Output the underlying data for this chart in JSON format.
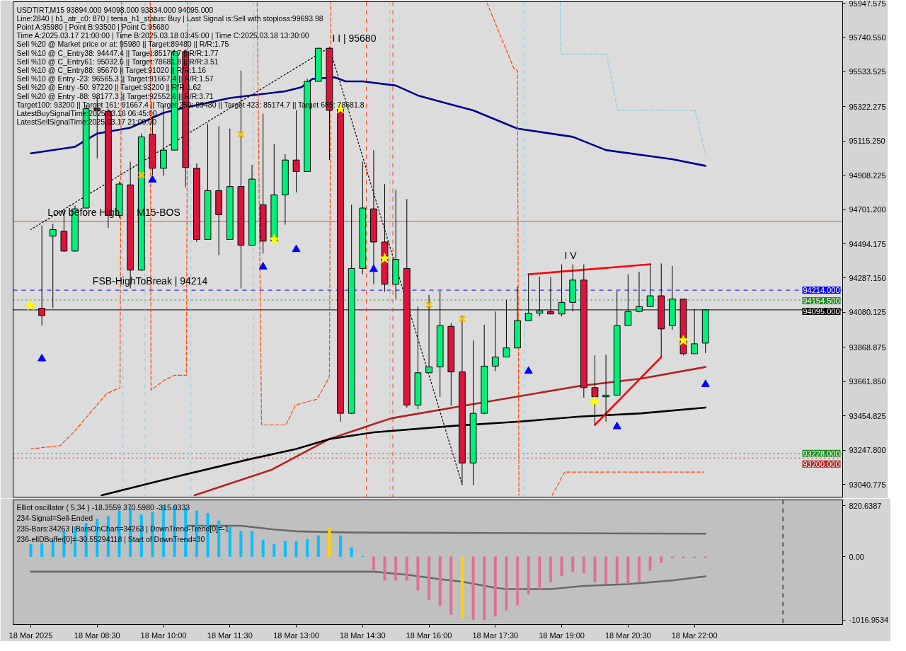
{
  "chart_data": [
    {
      "type": "candlestick",
      "title": "USDTIRT,M15  93894.000 94098.000 93834.000 94095.000",
      "annotations": [
        "Line:2840 | h1_atr_c0: 870 | tema_h1_status: Buy | Last Signal is:Sell with stoploss:99693.98",
        "Point A:95980 | Point B:93500 | Point C:95680",
        "Time A:2025.03.17 21:00:00 | Time B:2025.03.18 03:45:00 | Time C:2025.03.18 13:30:00",
        "Sell %20 @ Market price or at: 95980 || Target:89480 || R/R:1.75",
        "Sell %10 @ C_Entry38: 94447.4 || Target:85174.7 || R/R:1.77",
        "Sell %10 @ C_Entry61: 95032.6 || Target:78681.8 || R/R:3.51",
        "Sell %10 @ C_Entry88: 95670 || Target:91020 || R/R:1.16",
        "Sell %10 @ Entry -23: 96565.3 || Target:91667.4 || R/R:1.57",
        "Sell %20 @ Entry -50: 97220 || Target:93200 || R/R:1.62",
        "Sell %20 @ Entry -88: 98177.3 || Target:92552.6 || R/R:3.71",
        "Target100: 93200 || Target 161: 91667.4 || Target 250: 89480 || Target 423: 85174.7 || Target 685: 78681.8",
        "LatestBuySignalTime:2025.03.16 06:45:00",
        "LatestSellSignalTime:2025.03.17 21:00:00",
        {
          "text": "I I | 95680",
          "x": "2025-03-18T13:45",
          "y": 95680
        },
        {
          "text": "I V",
          "x": "2025-03-18T19:00",
          "y": 94370
        },
        {
          "text": "Low before High",
          "x": "2025-03-18T07:19",
          "y": 94630
        },
        {
          "text": "M15-BOS",
          "x": "2025-03-18T09:20",
          "y": 94630
        },
        {
          "text": "FSB-HighToBreak | 94214",
          "x": "2025-03-18T08:20",
          "y": 94214
        }
      ],
      "x": [
        "2025-03-18T07:15",
        "2025-03-18T07:30",
        "2025-03-18T07:45",
        "2025-03-18T08:00",
        "2025-03-18T08:15",
        "2025-03-18T08:30",
        "2025-03-18T08:45",
        "2025-03-18T09:00",
        "2025-03-18T09:15",
        "2025-03-18T09:30",
        "2025-03-18T09:45",
        "2025-03-18T10:00",
        "2025-03-18T10:15",
        "2025-03-18T10:30",
        "2025-03-18T10:45",
        "2025-03-18T11:00",
        "2025-03-18T11:15",
        "2025-03-18T11:30",
        "2025-03-18T11:45",
        "2025-03-18T12:00",
        "2025-03-18T12:15",
        "2025-03-18T12:30",
        "2025-03-18T12:45",
        "2025-03-18T13:00",
        "2025-03-18T13:15",
        "2025-03-18T13:30",
        "2025-03-18T13:45",
        "2025-03-18T14:00",
        "2025-03-18T14:15",
        "2025-03-18T14:30",
        "2025-03-18T14:45",
        "2025-03-18T15:00",
        "2025-03-18T15:15",
        "2025-03-18T15:30",
        "2025-03-18T15:45",
        "2025-03-18T16:00",
        "2025-03-18T16:15",
        "2025-03-18T16:30",
        "2025-03-18T16:45",
        "2025-03-18T17:00",
        "2025-03-18T17:15",
        "2025-03-18T17:30",
        "2025-03-18T17:45",
        "2025-03-18T18:00",
        "2025-03-18T18:15",
        "2025-03-18T18:30",
        "2025-03-18T18:45",
        "2025-03-18T19:00",
        "2025-03-18T19:15",
        "2025-03-18T19:30",
        "2025-03-18T19:45",
        "2025-03-18T20:00",
        "2025-03-18T20:15",
        "2025-03-18T20:30",
        "2025-03-18T20:45",
        "2025-03-18T21:00",
        "2025-03-18T21:15",
        "2025-03-18T21:30",
        "2025-03-18T21:45",
        "2025-03-18T22:00",
        "2025-03-18T22:15"
      ],
      "ohlc": [
        [
          94105,
          94605,
          94000,
          94060
        ],
        [
          94540,
          94615,
          94105,
          94580
        ],
        [
          94570,
          94705,
          94445,
          94450
        ],
        [
          94450,
          94725,
          94445,
          94705
        ],
        [
          94710,
          95330,
          94710,
          95310
        ],
        [
          95310,
          95380,
          95010,
          95300
        ],
        [
          95295,
          95310,
          94590,
          94665
        ],
        [
          94665,
          94870,
          94650,
          94855
        ],
        [
          94850,
          94990,
          94225,
          94335
        ],
        [
          94335,
          95160,
          94330,
          95140
        ],
        [
          95155,
          95265,
          94910,
          94950
        ],
        [
          94950,
          95330,
          94905,
          95060
        ],
        [
          95060,
          95665,
          95060,
          95655
        ],
        [
          95655,
          95670,
          94835,
          94955
        ],
        [
          94950,
          94980,
          94505,
          94520
        ],
        [
          94520,
          95220,
          94520,
          94815
        ],
        [
          94815,
          95205,
          94425,
          94670
        ],
        [
          94520,
          95190,
          94520,
          94840
        ],
        [
          94840,
          95540,
          94225,
          94485
        ],
        [
          94485,
          94970,
          94485,
          94885
        ],
        [
          94730,
          95280,
          94435,
          94510
        ],
        [
          94510,
          95095,
          94510,
          94790
        ],
        [
          94790,
          95035,
          94610,
          95000
        ],
        [
          95000,
          95300,
          94805,
          94930
        ],
        [
          94930,
          95490,
          94930,
          95475
        ],
        [
          95475,
          95680,
          95475,
          95675
        ],
        [
          95675,
          95680,
          95000,
          95300
        ],
        [
          95320,
          95330,
          93420,
          93470
        ],
        [
          93470,
          94730,
          93465,
          94345
        ],
        [
          94345,
          94990,
          94310,
          94710
        ],
        [
          94705,
          95060,
          94250,
          94505
        ],
        [
          94505,
          94855,
          94205,
          94250
        ],
        [
          94250,
          94820,
          94160,
          94400
        ],
        [
          94345,
          94765,
          93505,
          93520
        ],
        [
          93520,
          94115,
          93495,
          93715
        ],
        [
          93715,
          94185,
          93715,
          93750
        ],
        [
          93750,
          94210,
          93570,
          94000
        ],
        [
          93995,
          94015,
          93515,
          93720
        ],
        [
          93720,
          94060,
          93040,
          93170
        ],
        [
          93170,
          93910,
          93035,
          93470
        ],
        [
          93470,
          94005,
          93465,
          93755
        ],
        [
          93755,
          94085,
          93725,
          93810
        ],
        [
          93810,
          94155,
          93810,
          93865
        ],
        [
          93865,
          94235,
          93865,
          94030
        ],
        [
          94030,
          94310,
          94030,
          94075
        ],
        [
          94075,
          94295,
          94055,
          94090
        ],
        [
          94085,
          94295,
          94070,
          94070
        ],
        [
          94070,
          94370,
          94055,
          94140
        ],
        [
          94140,
          94370,
          94085,
          94275
        ],
        [
          94275,
          94370,
          93565,
          93625
        ],
        [
          93625,
          93820,
          93400,
          93570
        ],
        [
          93570,
          93825,
          93420,
          93580
        ],
        [
          93580,
          94210,
          93580,
          94000
        ],
        [
          94000,
          94310,
          94000,
          94085
        ],
        [
          94085,
          94325,
          94080,
          94115
        ],
        [
          94115,
          94375,
          94115,
          94180
        ],
        [
          94180,
          94375,
          93810,
          93980
        ],
        [
          94000,
          94360,
          93975,
          94160
        ],
        [
          94160,
          94160,
          93820,
          93830
        ],
        [
          93830,
          94100,
          93830,
          93890
        ],
        [
          93894,
          94098,
          93834,
          94095
        ]
      ],
      "colors": [
        "#dc143c",
        "#00f07a",
        "#dc143c",
        "#00f07a",
        "#00f07a",
        "#dc143c",
        "#dc143c",
        "#00f07a",
        "#dc143c",
        "#00f07a",
        "#dc143c",
        "#00f07a",
        "#00f07a",
        "#dc143c",
        "#dc143c",
        "#00f07a",
        "#dc143c",
        "#00f07a",
        "#dc143c",
        "#00f07a",
        "#dc143c",
        "#00f07a",
        "#00f07a",
        "#dc143c",
        "#00f07a",
        "#00f07a",
        "#dc143c",
        "#dc143c",
        "#00f07a",
        "#00f07a",
        "#dc143c",
        "#dc143c",
        "#00f07a",
        "#dc143c",
        "#00f07a",
        "#00f07a",
        "#00f07a",
        "#dc143c",
        "#dc143c",
        "#00f07a",
        "#00f07a",
        "#00f07a",
        "#00f07a",
        "#00f07a",
        "#00f07a",
        "#00f07a",
        "#dc143c",
        "#00f07a",
        "#00f07a",
        "#dc143c",
        "#dc143c",
        "#00f07a",
        "#00f07a",
        "#00f07a",
        "#00f07a",
        "#00f07a",
        "#dc143c",
        "#00f07a",
        "#dc143c",
        "#00f07a",
        "#00f07a"
      ],
      "series": [
        {
          "type": "line",
          "color": "#00008b",
          "x": [
            "2025-03-18T07:00",
            "2025-03-18T08:00",
            "2025-03-18T08:30",
            "2025-03-18T09:15",
            "2025-03-18T10:00",
            "2025-03-18T10:22",
            "2025-03-18T11:30",
            "2025-03-18T12:45",
            "2025-03-18T13:07",
            "2025-03-18T13:22",
            "2025-03-18T13:52",
            "2025-03-18T14:07",
            "2025-03-18T14:30",
            "2025-03-18T15:15",
            "2025-03-18T15:45",
            "2025-03-18T16:30",
            "2025-03-18T17:00",
            "2025-03-18T18:00",
            "2025-03-18T19:15",
            "2025-03-18T20:00",
            "2025-03-18T21:30",
            "2025-03-18T22:15"
          ],
          "values": [
            95040,
            95080,
            95160,
            95195,
            95285,
            95310,
            95375,
            95415,
            95440,
            95490,
            95500,
            95475,
            95475,
            95450,
            95390,
            95335,
            95300,
            95190,
            95140,
            95060,
            95005,
            94965
          ]
        },
        {
          "type": "line",
          "color": "#b22222",
          "x": [
            "2025-03-18T10:42",
            "2025-03-18T12:27",
            "2025-03-18T13:45",
            "2025-03-18T14:45",
            "2025-03-18T15:09",
            "2025-03-18T16:52",
            "2025-03-18T18:18",
            "2025-03-18T19:24",
            "2025-03-18T20:48",
            "2025-03-18T22:15"
          ],
          "values": [
            92975,
            93130,
            93315,
            93405,
            93440,
            93520,
            93585,
            93635,
            93680,
            93750
          ]
        },
        {
          "type": "line",
          "color": "#000000",
          "x": [
            "2025-03-18T08:36",
            "2025-03-18T10:15",
            "2025-03-18T11:54",
            "2025-03-18T13:00",
            "2025-03-18T13:45",
            "2025-03-18T14:45",
            "2025-03-18T16:36",
            "2025-03-18T18:03",
            "2025-03-18T19:24",
            "2025-03-18T20:48",
            "2025-03-18T22:15"
          ],
          "values": [
            92975,
            93085,
            93190,
            93255,
            93315,
            93355,
            93395,
            93420,
            93450,
            93470,
            93505
          ]
        },
        {
          "type": "line",
          "color": "#ff0000",
          "x": [
            "2025-03-18T18:15",
            "2025-03-18T21:00"
          ],
          "values": [
            94310,
            94370
          ]
        },
        {
          "type": "line",
          "color": "#ff0000",
          "x": [
            "2025-03-18T19:45",
            "2025-03-18T21:15"
          ],
          "values": [
            93400,
            93810
          ]
        },
        {
          "type": "line",
          "color": "#000000",
          "line_style": "dotted",
          "x": [
            "2025-03-18T07:00",
            "2025-03-18T13:45",
            "2025-03-18T16:45"
          ],
          "values": [
            94580,
            95680,
            93040
          ]
        },
        {
          "type": "line",
          "color": "#ff4500",
          "line_style": "dashed",
          "x": [
            "2025-03-18T07:00",
            "2025-03-18T07:40",
            "2025-03-18T07:58",
            "2025-03-18T08:25",
            "2025-03-18T08:43",
            "2025-03-18T09:01",
            "2025-03-18T09:03"
          ],
          "values": [
            93255,
            93275,
            93355,
            93495,
            93590,
            93625,
            95950
          ]
        },
        {
          "type": "line",
          "color": "#ff4500",
          "line_style": "dashed",
          "x": [
            "2025-03-18T09:42",
            "2025-03-18T09:43",
            "2025-03-18T10:01",
            "2025-03-18T10:15",
            "2025-03-18T10:31",
            "2025-03-18T10:33"
          ],
          "values": [
            95950,
            93610,
            93670,
            93700,
            93700,
            95950
          ]
        },
        {
          "type": "line",
          "color": "#ff4500",
          "line_style": "dashed",
          "x": [
            "2025-03-18T12:07",
            "2025-03-18T12:13",
            "2025-03-18T12:46",
            "2025-03-18T12:59",
            "2025-03-18T13:28",
            "2025-03-18T13:45",
            "2025-03-18T13:47"
          ],
          "values": [
            95950,
            93400,
            93400,
            93520,
            93555,
            93690,
            95950
          ]
        },
        {
          "type": "line",
          "color": "#ff4500",
          "line_style": "dashed",
          "x": [
            "2025-03-18T17:19",
            "2025-03-18T17:55",
            "2025-03-18T18:00",
            "2025-03-18T18:02"
          ],
          "values": [
            95945,
            95555,
            95540,
            92975
          ]
        },
        {
          "type": "line",
          "color": "#ff4500",
          "line_style": "dashed",
          "x": [
            "2025-03-18T18:47",
            "2025-03-18T19:04",
            "2025-03-18T19:19",
            "2025-03-18T22:13"
          ],
          "values": [
            92975,
            93115,
            93115,
            93115
          ]
        },
        {
          "type": "line",
          "color": "#87ceeb",
          "line_style": "dashed",
          "x": [
            "2025-03-18T18:58",
            "2025-03-18T18:59",
            "2025-03-18T20:01",
            "2025-03-18T20:16",
            "2025-03-18T22:01",
            "2025-03-18T22:16"
          ],
          "values": [
            95950,
            95640,
            95640,
            95300,
            95300,
            95020
          ]
        },
        {
          "type": "scatter",
          "marker": "star",
          "color": "#ffff00",
          "x": [
            "2025-03-18T07:00",
            "2025-03-18T12:30",
            "2025-03-18T14:00",
            "2025-03-18T15:00",
            "2025-03-18T19:45",
            "2025-03-18T21:45"
          ],
          "values": [
            94120,
            94520,
            95310,
            94405,
            93540,
            93910
          ]
        },
        {
          "type": "scatter",
          "marker": "cross",
          "color": "#ffc000",
          "x": [
            "2025-03-18T09:30",
            "2025-03-18T11:45",
            "2025-03-18T16:00",
            "2025-03-18T16:45"
          ],
          "values": [
            94910,
            95155,
            94125,
            94040
          ]
        },
        {
          "type": "scatter",
          "marker": "triangle",
          "color": "#0000ff",
          "x": [
            "2025-03-18T07:15",
            "2025-03-18T09:45",
            "2025-03-18T12:15",
            "2025-03-18T13:00",
            "2025-03-18T14:45",
            "2025-03-18T18:15",
            "2025-03-18T20:15",
            "2025-03-18T22:15"
          ],
          "values": [
            93800,
            94880,
            94355,
            94460,
            94340,
            93725,
            93390,
            93645
          ]
        }
      ],
      "ref_lines": [
        {
          "axis": "y",
          "value": 94630,
          "color": "#ff4500"
        },
        {
          "axis": "y",
          "value": 94214,
          "label": "94214.000",
          "color": "#0000ff",
          "line_style": "dashed"
        },
        {
          "axis": "y",
          "value": 94154.5,
          "label": "94154.500",
          "color": "#228b22",
          "line_style": "dotted"
        },
        {
          "axis": "y",
          "value": 94095,
          "label": "94095.000",
          "color": "#000000"
        },
        {
          "axis": "y",
          "value": 93228,
          "label": "93228.000",
          "color": "#228b22",
          "line_style": "dotted"
        },
        {
          "axis": "y",
          "value": 93200,
          "label": "93200.000",
          "color": "#b22222",
          "line_style": "dotted"
        },
        {
          "axis": "x",
          "value": "2025-03-18T09:05",
          "color": "#87ceeb",
          "line_style": "dashed"
        },
        {
          "axis": "x",
          "value": "2025-03-18T09:35",
          "color": "#87ceeb",
          "line_style": "dashed"
        },
        {
          "axis": "x",
          "value": "2025-03-18T10:37",
          "color": "#87ceeb",
          "line_style": "dashed"
        },
        {
          "axis": "x",
          "value": "2025-03-18T12:02",
          "color": "#87ceeb",
          "line_style": "dashed"
        },
        {
          "axis": "x",
          "value": "2025-03-18T15:07",
          "color": "#87ceeb",
          "line_style": "dashed"
        },
        {
          "axis": "x",
          "value": "2025-03-18T18:10",
          "color": "#87ceeb",
          "line_style": "dashed"
        },
        {
          "axis": "x",
          "value": "2025-03-18T14:35",
          "color": "#ff4500",
          "line_style": "dashed"
        },
        {
          "axis": "x",
          "value": "2025-03-18T15:11",
          "color": "#ff4500",
          "line_style": "dashed"
        }
      ],
      "xlim": [
        "2025-03-18T06:36",
        "2025-03-19T01:21"
      ],
      "ylim": [
        92964,
        95956
      ],
      "yticks": [
        95947.575,
        {
          "value": 95740.55,
          "label": "95740.550"
        },
        95533.525,
        95322.275,
        {
          "value": 95115.25,
          "label": "95115.250"
        },
        94908.225,
        {
          "value": 94701.2,
          "label": "94701.200"
        },
        94494.175,
        {
          "value": 94287.15,
          "label": "94287.150"
        },
        94080.125,
        93868.875,
        {
          "value": 93661.85,
          "label": "93661.850"
        },
        93454.825,
        {
          "value": 93247.8,
          "label": "93247.800"
        },
        93040.775
      ],
      "tick_labels": "y"
    },
    {
      "type": "bar",
      "title": "Elliot oscillator ( 5,34 ) -18.3559 370.5980 -315.0333",
      "annotations": [
        "234-Signal=Sell-Ended",
        "235-Bars:34263 | BarsOnChart=34263 | DownTrend-Trend[0]=-1",
        "236-ellDBuffer[0]=-30.55294118 | Start of DownTrend=30"
      ],
      "series": [
        {
          "type": "bar",
          "x": [
            "2025-03-18T07:00",
            "2025-03-18T07:15",
            "2025-03-18T07:30",
            "2025-03-18T07:45",
            "2025-03-18T08:00",
            "2025-03-18T08:15",
            "2025-03-18T08:30",
            "2025-03-18T08:45",
            "2025-03-18T09:00",
            "2025-03-18T09:15",
            "2025-03-18T09:30",
            "2025-03-18T09:45",
            "2025-03-18T10:00",
            "2025-03-18T10:15",
            "2025-03-18T10:30",
            "2025-03-18T10:45",
            "2025-03-18T11:00",
            "2025-03-18T11:15",
            "2025-03-18T11:30",
            "2025-03-18T11:45",
            "2025-03-18T12:00",
            "2025-03-18T12:15",
            "2025-03-18T12:30",
            "2025-03-18T12:45",
            "2025-03-18T13:00",
            "2025-03-18T13:15",
            "2025-03-18T13:30",
            "2025-03-18T13:45",
            "2025-03-18T14:00",
            "2025-03-18T14:15",
            "2025-03-18T14:30",
            "2025-03-18T14:45",
            "2025-03-18T15:00",
            "2025-03-18T15:15",
            "2025-03-18T15:30",
            "2025-03-18T15:45",
            "2025-03-18T16:00",
            "2025-03-18T16:15",
            "2025-03-18T16:30",
            "2025-03-18T16:45",
            "2025-03-18T17:00",
            "2025-03-18T17:15",
            "2025-03-18T17:30",
            "2025-03-18T17:45",
            "2025-03-18T18:00",
            "2025-03-18T18:15",
            "2025-03-18T18:30",
            "2025-03-18T18:45",
            "2025-03-18T19:00",
            "2025-03-18T19:15",
            "2025-03-18T19:30",
            "2025-03-18T19:45",
            "2025-03-18T20:00",
            "2025-03-18T20:15",
            "2025-03-18T20:30",
            "2025-03-18T20:45",
            "2025-03-18T21:00",
            "2025-03-18T21:15",
            "2025-03-18T21:30",
            "2025-03-18T21:45",
            "2025-03-18T22:00",
            "2025-03-18T22:15"
          ],
          "values": [
            200,
            220,
            270,
            410,
            480,
            540,
            610,
            650,
            740,
            780,
            680,
            720,
            820,
            820,
            780,
            740,
            700,
            580,
            480,
            410,
            410,
            270,
            200,
            250,
            250,
            280,
            340,
            460,
            340,
            150,
            10,
            -210,
            -380,
            -380,
            -380,
            -540,
            -690,
            -790,
            -930,
            -990,
            -1010,
            -1016.9534,
            -960,
            -860,
            -780,
            -600,
            -520,
            -410,
            -310,
            -240,
            -260,
            -410,
            -430,
            -430,
            -430,
            -400,
            -220,
            -100,
            -20,
            -20,
            -20,
            -18.3559
          ],
          "colors": [
            "#00bfff",
            "#00bfff",
            "#00bfff",
            "#00bfff",
            "#00bfff",
            "#00bfff",
            "#00bfff",
            "#00bfff",
            "#00bfff",
            "#00bfff",
            "#00bfff",
            "#00bfff",
            "#00bfff",
            "#00bfff",
            "#00bfff",
            "#00bfff",
            "#00bfff",
            "#00bfff",
            "#00bfff",
            "#00bfff",
            "#00bfff",
            "#00bfff",
            "#00bfff",
            "#00bfff",
            "#00bfff",
            "#00bfff",
            "#00bfff",
            "#ffd700",
            "#00bfff",
            "#00bfff",
            "#00bfff",
            "#e07090",
            "#e07090",
            "#e07090",
            "#e07090",
            "#e07090",
            "#e07090",
            "#e07090",
            "#e07090",
            "#ffd700",
            "#e07090",
            "#e07090",
            "#e07090",
            "#e07090",
            "#e07090",
            "#e07090",
            "#e07090",
            "#e07090",
            "#e07090",
            "#e07090",
            "#e07090",
            "#e07090",
            "#e07090",
            "#e07090",
            "#e07090",
            "#e07090",
            "#e07090",
            "#e07090",
            "#e07090",
            "#e07090",
            "#e07090",
            "#e07090"
          ]
        },
        {
          "type": "line",
          "color": "#696969",
          "x": [
            "2025-03-18T10:30",
            "2025-03-18T11:45",
            "2025-03-18T12:30",
            "2025-03-18T13:00",
            "2025-03-18T14:15",
            "2025-03-18T22:15"
          ],
          "values": [
            500,
            500,
            440,
            410,
            390,
            370.598
          ]
        },
        {
          "type": "line",
          "color": "#696969",
          "x": [
            "2025-03-18T07:00",
            "2025-03-18T14:45",
            "2025-03-18T15:30",
            "2025-03-18T16:15",
            "2025-03-18T16:45",
            "2025-03-18T17:30",
            "2025-03-18T17:45",
            "2025-03-18T18:45",
            "2025-03-18T19:30",
            "2025-03-18T20:30",
            "2025-03-18T21:30",
            "2025-03-18T22:15"
          ],
          "values": [
            -240,
            -240,
            -290,
            -360,
            -400,
            -500,
            -520,
            -520,
            -470,
            -440,
            -380,
            -315.0333
          ]
        }
      ],
      "ref_lines": [
        {
          "axis": "x",
          "value": "2025-03-19T00:00",
          "color": "#000000",
          "line_style": "dashed"
        }
      ],
      "xlim": [
        "2025-03-18T06:36",
        "2025-03-19T01:21"
      ],
      "ylim": [
        -1090,
        915
      ],
      "xticks": [
        {
          "value": "2025-03-18T07:00",
          "label": "18 Mar 2025"
        },
        {
          "value": "2025-03-18T08:30",
          "label": "18 Mar 08:30"
        },
        {
          "value": "2025-03-18T10:00",
          "label": "18 Mar 10:00"
        },
        {
          "value": "2025-03-18T11:30",
          "label": "18 Mar 11:30"
        },
        {
          "value": "2025-03-18T13:00",
          "label": "18 Mar 13:00"
        },
        {
          "value": "2025-03-18T14:30",
          "label": "18 Mar 14:30"
        },
        {
          "value": "2025-03-18T16:00",
          "label": "18 Mar 16:00"
        },
        {
          "value": "2025-03-18T17:30",
          "label": "18 Mar 17:30"
        },
        {
          "value": "2025-03-18T19:00",
          "label": "18 Mar 19:00"
        },
        {
          "value": "2025-03-18T20:30",
          "label": "18 Mar 20:30"
        },
        {
          "value": "2025-03-18T22:00",
          "label": "18 Mar 22:00"
        }
      ],
      "yticks": [
        820.6387,
        {
          "value": 0,
          "label": "0.00"
        },
        -1016.9534
      ]
    }
  ]
}
